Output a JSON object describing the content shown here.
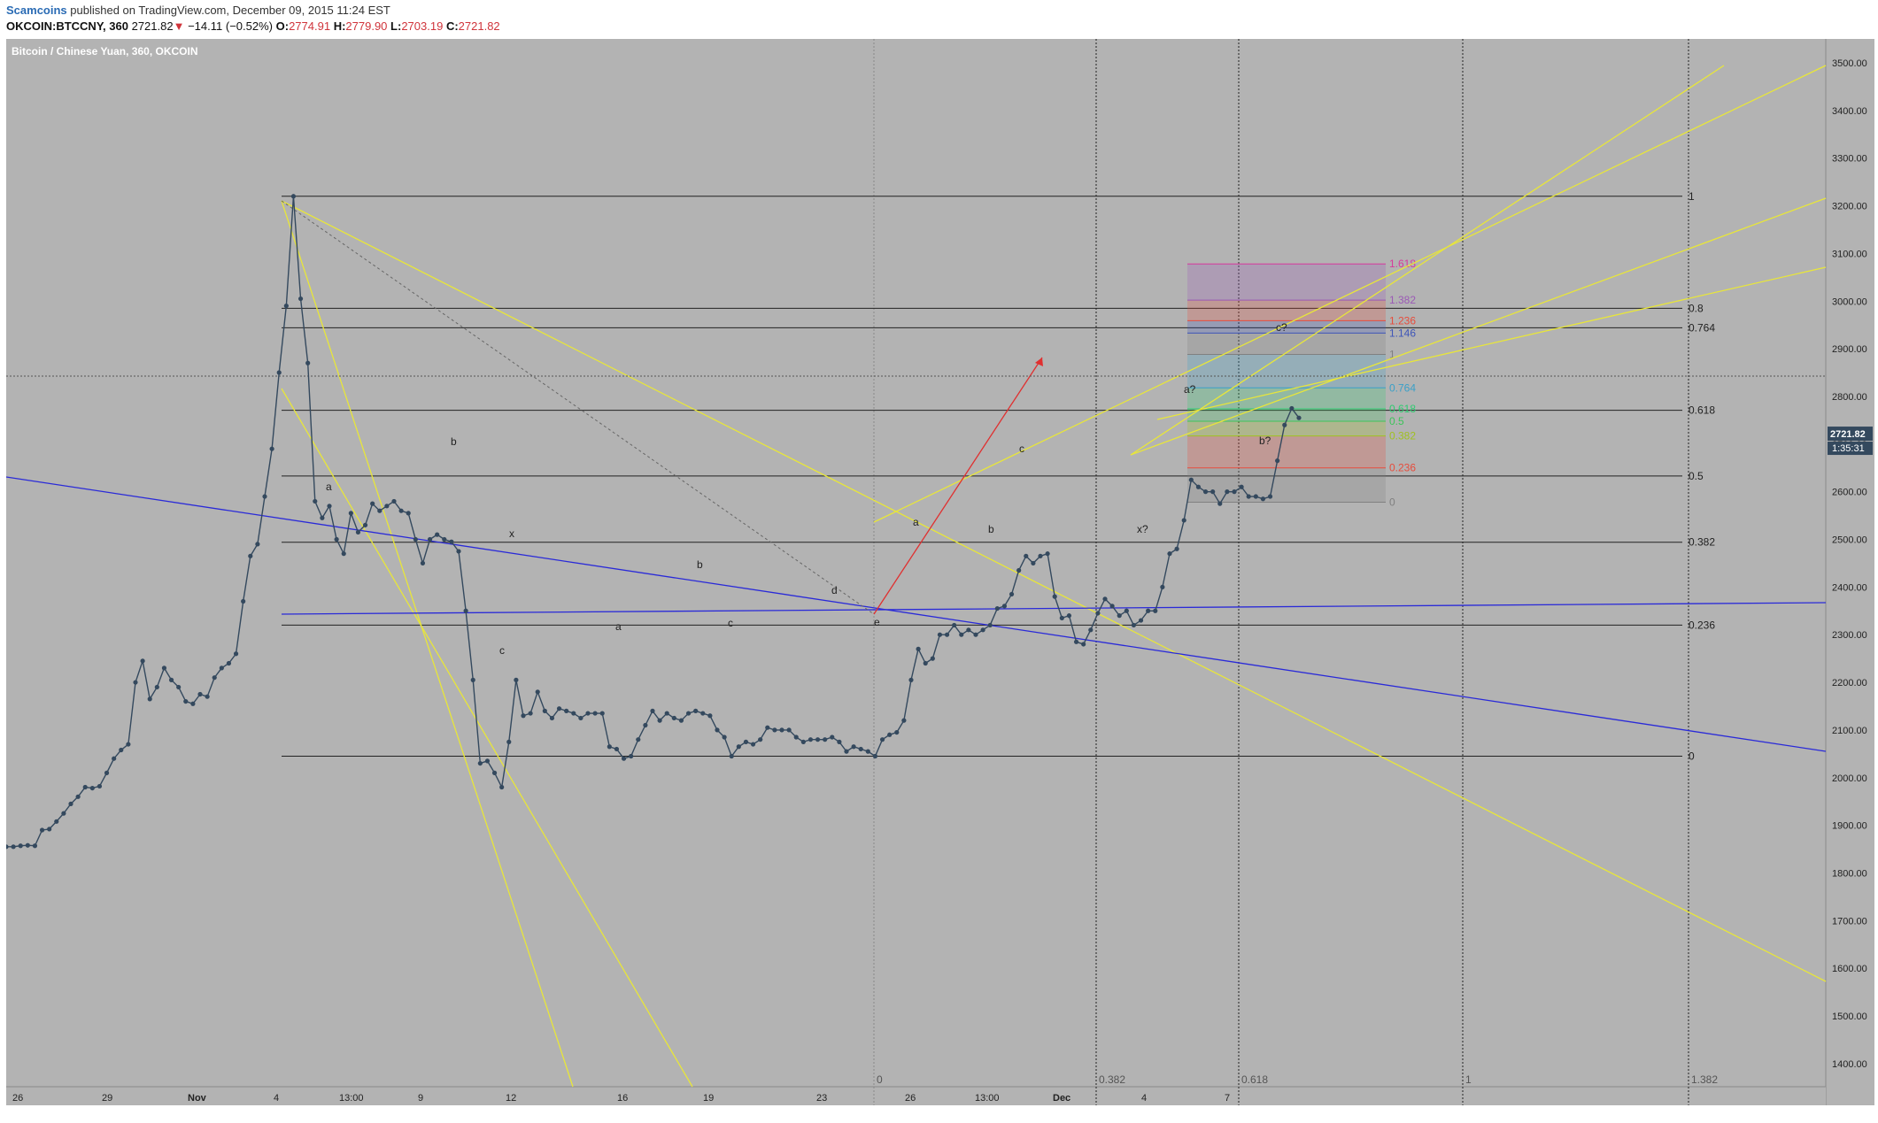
{
  "header": {
    "author": "Scamcoins",
    "published_text": "published on TradingView.com, December 09, 2015 11:24 EST",
    "symbol": "OKCOIN:BTCCNY, 360",
    "last": "2721.82",
    "change_arrow": "▼",
    "change": "−14.11 (−0.52%)",
    "o_label": "O:",
    "o_value": "2774.91",
    "h_label": "H:",
    "h_value": "2779.90",
    "l_label": "L:",
    "l_value": "2703.19",
    "c_label": "C:",
    "c_value": "2721.82"
  },
  "chart_data": {
    "type": "line",
    "title": "Bitcoin / Chinese Yuan, 360, OKCOIN",
    "ylim": [
      1380,
      3580
    ],
    "y_ticks": [
      "3500.00",
      "3400.00",
      "3300.00",
      "3200.00",
      "3100.00",
      "3000.00",
      "2900.00",
      "2800.00",
      "2700.00",
      "2600.00",
      "2500.00",
      "2400.00",
      "2300.00",
      "2200.00",
      "2100.00",
      "2000.00",
      "1900.00",
      "1800.00",
      "1700.00",
      "1600.00",
      "1500.00",
      "1400.00"
    ],
    "x_ticks": [
      "26",
      "29",
      "Nov",
      "4",
      "13:00",
      "9",
      "12",
      "16",
      "19",
      "23",
      "26",
      "13:00",
      "Dec",
      "4",
      "7"
    ],
    "last_price_label": "2721.82",
    "countdown_label": "1:35:31",
    "grid": false,
    "series": [
      {
        "values": [
          1855,
          1855,
          1857,
          1858,
          1857,
          1890,
          1892,
          1908,
          1925,
          1945,
          1960,
          1980,
          1978,
          1982,
          2010,
          2040,
          2058,
          2070,
          2200,
          2245,
          2165,
          2190,
          2230,
          2205,
          2190,
          2160,
          2155,
          2175,
          2170,
          2210,
          2230,
          2240,
          2260,
          2370,
          2465,
          2490,
          2590,
          2690,
          2850,
          2990,
          3220,
          3005,
          2870,
          2580,
          2545,
          2570,
          2500,
          2470,
          2555,
          2515,
          2530,
          2575,
          2560,
          2570,
          2580,
          2560,
          2555,
          2500,
          2450,
          2500,
          2510,
          2500,
          2495,
          2475,
          2350,
          2205,
          2030,
          2035,
          2010,
          1980,
          2075,
          2205,
          2130,
          2135,
          2180,
          2140,
          2125,
          2145,
          2140,
          2135,
          2125,
          2135,
          2135,
          2135,
          2065,
          2060,
          2040,
          2045,
          2080,
          2110,
          2140,
          2120,
          2135,
          2125,
          2120,
          2135,
          2140,
          2135,
          2130,
          2100,
          2085,
          2045,
          2065,
          2075,
          2070,
          2080,
          2105,
          2100,
          2100,
          2100,
          2085,
          2075,
          2080,
          2080,
          2080,
          2085,
          2075,
          2055,
          2065,
          2060,
          2055,
          2045,
          2080,
          2090,
          2095,
          2120,
          2205,
          2270,
          2240,
          2250,
          2300,
          2300,
          2320,
          2300,
          2310,
          2300,
          2310,
          2320,
          2355,
          2360,
          2385,
          2435,
          2465,
          2450,
          2465,
          2470,
          2380,
          2335,
          2340,
          2285,
          2280,
          2310,
          2345,
          2375,
          2360,
          2340,
          2350,
          2320,
          2330,
          2350,
          2350,
          2400,
          2470,
          2480,
          2540,
          2625,
          2610,
          2600,
          2600,
          2575,
          2600,
          2600,
          2610,
          2590,
          2590,
          2585,
          2590,
          2665,
          2740,
          2775,
          2755
        ]
      }
    ],
    "horizontal_levels": [
      {
        "value": 3220,
        "label": "1"
      },
      {
        "value": 2985,
        "label": "0.8"
      },
      {
        "value": 2944,
        "label": "0.764"
      },
      {
        "value": 2771,
        "label": "0.618"
      },
      {
        "value": 2633,
        "label": "0.5"
      },
      {
        "value": 2494,
        "label": "0.382"
      },
      {
        "value": 2320,
        "label": "0.236"
      },
      {
        "value": 2045,
        "label": "0"
      }
    ],
    "fib_extension_levels": [
      {
        "value": 3078,
        "label": "1.618",
        "color": "#d63a9c"
      },
      {
        "value": 3002,
        "label": "1.382",
        "color": "#9b59b6"
      },
      {
        "value": 2959,
        "label": "1.236",
        "color": "#e74c3c"
      },
      {
        "value": 2933,
        "label": "1.146",
        "color": "#3e55b8"
      },
      {
        "value": 2888,
        "label": "1",
        "color": "#808080"
      },
      {
        "value": 2818,
        "label": "0.764",
        "color": "#3aa0c8"
      },
      {
        "value": 2774,
        "label": "0.618",
        "color": "#2ecc71"
      },
      {
        "value": 2748,
        "label": "0.5",
        "color": "#3cc45a"
      },
      {
        "value": 2717,
        "label": "0.382",
        "color": "#a0c020"
      },
      {
        "value": 2650,
        "label": "0.236",
        "color": "#e74c3c"
      },
      {
        "value": 2578,
        "label": "0",
        "color": "#808080"
      }
    ],
    "time_fib_labels": [
      "0",
      "0.382",
      "0.618",
      "1",
      "1.382"
    ],
    "wave_labels": [
      "a",
      "b",
      "c",
      "x",
      "a",
      "b",
      "c",
      "d",
      "e",
      "a",
      "b",
      "c",
      "x?",
      "a?",
      "b?",
      "c?"
    ]
  }
}
